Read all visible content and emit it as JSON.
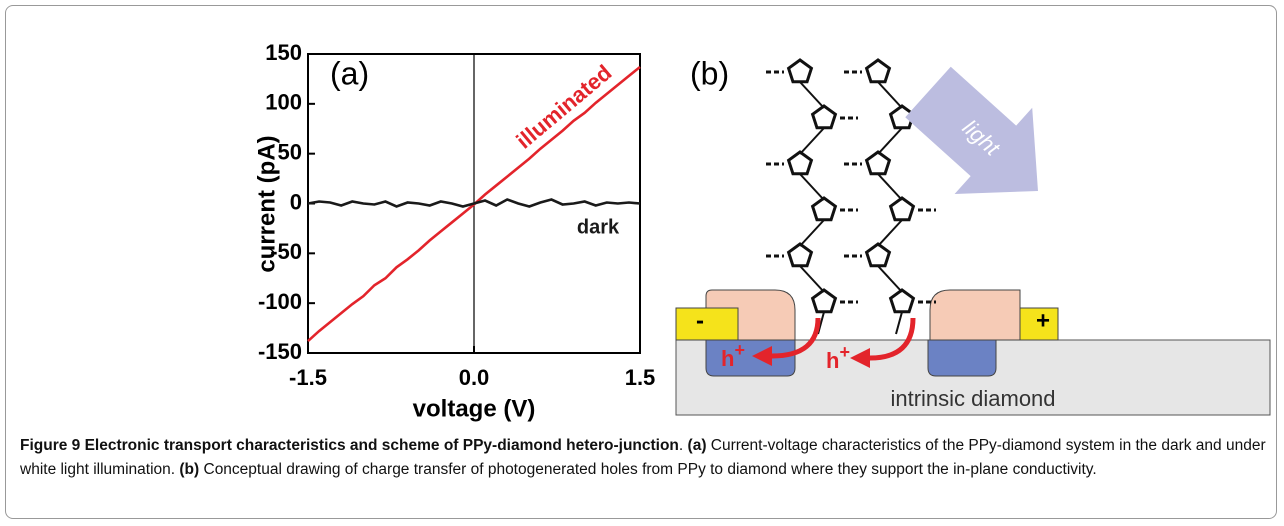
{
  "chart_data": {
    "type": "line",
    "panel": "(a)",
    "xlabel": "voltage (V)",
    "ylabel": "current (pA)",
    "x": [
      -1.5,
      -1.4,
      -1.3,
      -1.2,
      -1.1,
      -1.0,
      -0.9,
      -0.8,
      -0.7,
      -0.6,
      -0.5,
      -0.4,
      -0.3,
      -0.2,
      -0.1,
      0.0,
      0.1,
      0.2,
      0.3,
      0.4,
      0.5,
      0.6,
      0.7,
      0.8,
      0.9,
      1.0,
      1.1,
      1.2,
      1.3,
      1.4,
      1.5
    ],
    "series": [
      {
        "name": "illuminated",
        "color": "#e3242b",
        "values": [
          -138,
          -128,
          -119,
          -110,
          -101,
          -93,
          -82,
          -75,
          -64,
          -56,
          -47,
          -37,
          -28,
          -19,
          -10,
          -1,
          9,
          18,
          27,
          36,
          45,
          55,
          64,
          73,
          83,
          91,
          101,
          110,
          119,
          128,
          137
        ]
      },
      {
        "name": "dark",
        "color": "#1a1a1a",
        "values": [
          0,
          2,
          1,
          -2,
          2,
          0,
          -1,
          2,
          -3,
          1,
          0,
          -2,
          2,
          0,
          -3,
          0,
          3,
          -2,
          4,
          0,
          -3,
          1,
          4,
          -1,
          0,
          2,
          -2,
          1,
          0,
          1,
          0
        ]
      }
    ],
    "xlim": [
      -1.5,
      1.5
    ],
    "xticks": [
      -1.5,
      {
        "value": 0,
        "label": "0.0"
      },
      1.5
    ],
    "ylim": [
      -150,
      150
    ],
    "yticks": [
      -150,
      -100,
      -50,
      0,
      50,
      100,
      150
    ]
  },
  "diagram": {
    "panel": "(b)",
    "light": "light",
    "minus": "-",
    "plus": "+",
    "hole_left": {
      "base": "h",
      "sup": "+"
    },
    "hole_right": {
      "base": "h",
      "sup": "+"
    },
    "substrate": "intrinsic diamond"
  },
  "caption": {
    "parts": [
      {
        "text": "Figure 9 Electronic transport characteristics and scheme of PPy-diamond hetero-junction",
        "bold": true
      },
      {
        "text": ". ",
        "bold": false
      },
      {
        "text": "(a)",
        "bold": true
      },
      {
        "text": " Current-voltage characteristics of the PPy-diamond system in the dark and under white light illumination. ",
        "bold": false
      },
      {
        "text": "(b)",
        "bold": true
      },
      {
        "text": " Conceptual drawing of charge transfer of photogenerated holes from PPy to diamond where they support the in-plane conductivity.",
        "bold": false
      }
    ]
  }
}
